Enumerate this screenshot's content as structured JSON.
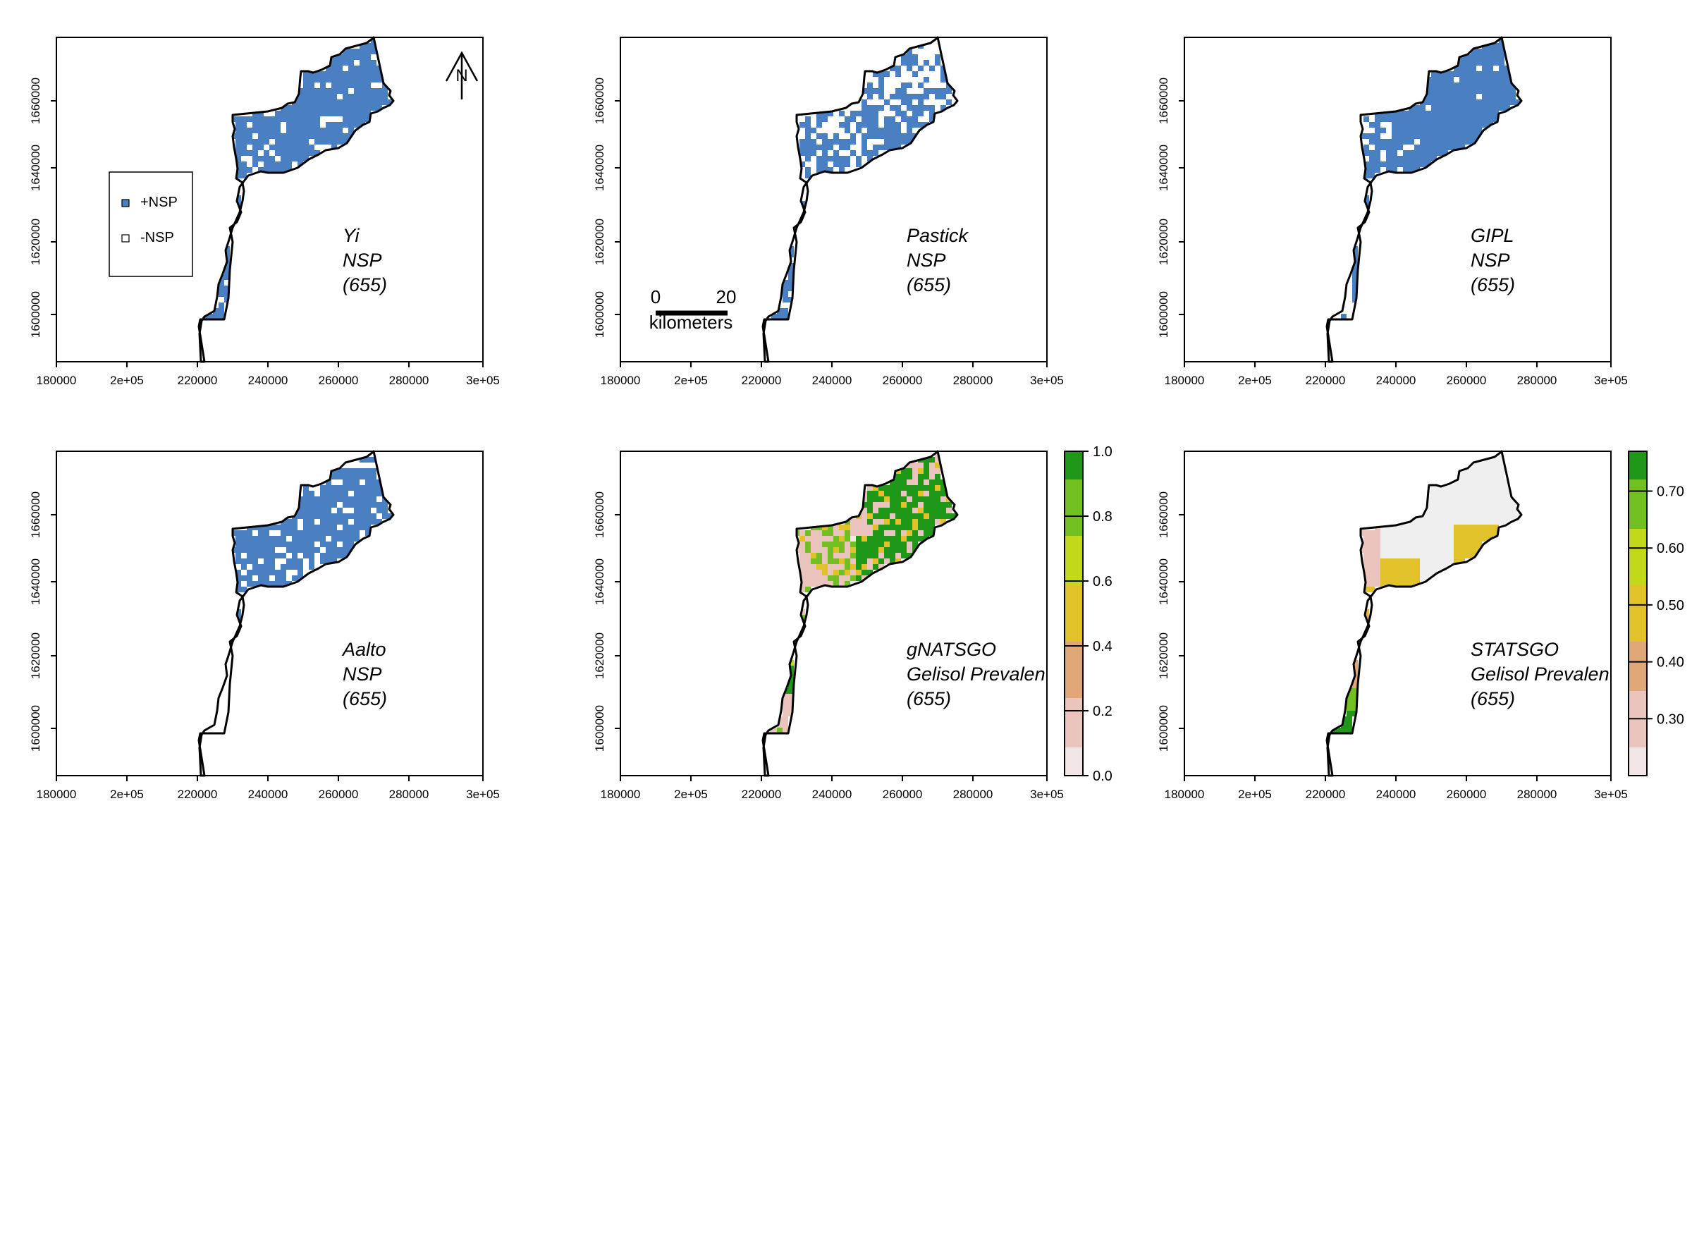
{
  "x_ticks": [
    "180000",
    "2e+05",
    "220000",
    "240000",
    "260000",
    "280000",
    "3e+05"
  ],
  "y_ticks": [
    "1600000",
    "1620000",
    "1640000",
    "1660000"
  ],
  "panels": [
    {
      "id": "yi",
      "label": [
        "Yi",
        "NSP",
        "(655)"
      ],
      "type": "binary",
      "coverage": "full"
    },
    {
      "id": "pastick",
      "label": [
        "Pastick",
        "NSP",
        "(655)"
      ],
      "type": "binary",
      "coverage": "sparse"
    },
    {
      "id": "gipl",
      "label": [
        "GIPL",
        "NSP",
        "(655)"
      ],
      "type": "binary",
      "coverage": "dense"
    },
    {
      "id": "aalto",
      "label": [
        "Aalto",
        "NSP",
        "(655)"
      ],
      "type": "binary",
      "coverage": "north"
    },
    {
      "id": "gnatsgo",
      "label": [
        "gNATSGO",
        "Gelisol Prevalen",
        "(655)"
      ],
      "type": "continuous",
      "colorbar": {
        "labels": [
          "0.0",
          "0.2",
          "0.4",
          "0.6",
          "0.8",
          "1.0"
        ],
        "min": 0.0,
        "max": 1.0
      }
    },
    {
      "id": "statsgo",
      "label": [
        "STATSGO",
        "Gelisol Prevalen",
        "(655)"
      ],
      "type": "continuous",
      "colorbar": {
        "labels": [
          "0.30",
          "0.40",
          "0.50",
          "0.60",
          "0.70"
        ],
        "min": 0.2,
        "max": 0.77
      }
    }
  ],
  "legend": {
    "items": [
      {
        "label": "+NSP",
        "color": "#4a7fc1"
      },
      {
        "label": "-NSP",
        "color": "#ffffff"
      }
    ]
  },
  "north_arrow": {
    "label": "N"
  },
  "scale_bar": {
    "start": "0",
    "end": "20",
    "unit": "kilometers"
  },
  "colors": {
    "nsp": "#4a7fc1",
    "ramp": [
      "#f2e6e6",
      "#ebc4be",
      "#e0a878",
      "#e2c22a",
      "#c2d81a",
      "#72bf22",
      "#1f981a"
    ],
    "neutral": "#efefef"
  }
}
